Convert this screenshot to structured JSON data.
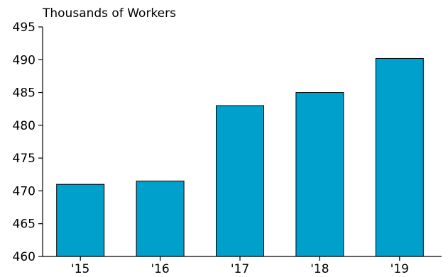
{
  "chart_data": {
    "type": "bar",
    "title": "",
    "ylabel": "Thousands of Workers",
    "xlabel": "",
    "categories": [
      "'15",
      "'16",
      "'17",
      "'18",
      "'19"
    ],
    "values": [
      471,
      471.5,
      483,
      485,
      490.2
    ],
    "ylim": [
      460,
      495
    ],
    "yticks": [
      460,
      465,
      470,
      475,
      480,
      485,
      490,
      495
    ],
    "ytick_labels": [
      "460",
      "465",
      "470",
      "475",
      "480",
      "485",
      "490",
      "495"
    ],
    "grid": false,
    "legend": "none",
    "bar_color": "#00A0CC"
  }
}
